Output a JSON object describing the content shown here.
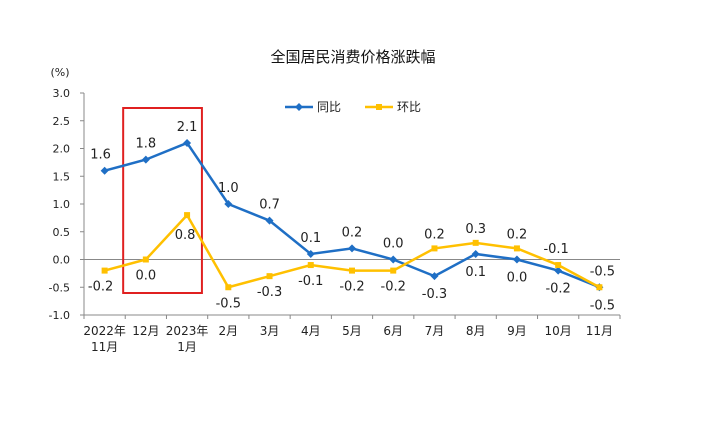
{
  "chart_data": {
    "type": "line",
    "title": "全国居民消费价格涨跌幅",
    "unit_label": "(%)",
    "xlabel": "",
    "ylabel": "",
    "ylim": [
      -1.0,
      3.0
    ],
    "y_ticks": [
      "3.0",
      "2.5",
      "2.0",
      "1.5",
      "1.0",
      "0.5",
      "0.0",
      "-0.5",
      "-1.0"
    ],
    "categories": [
      [
        "2022年",
        "11月"
      ],
      [
        "12月"
      ],
      [
        "2023年",
        "1月"
      ],
      [
        "2月"
      ],
      [
        "3月"
      ],
      [
        "4月"
      ],
      [
        "5月"
      ],
      [
        "6月"
      ],
      [
        "7月"
      ],
      [
        "8月"
      ],
      [
        "9月"
      ],
      [
        "10月"
      ],
      [
        "11月"
      ]
    ],
    "legend_position": "top-center",
    "grid": false,
    "series": [
      {
        "name": "同比",
        "color": "#1f6fc5",
        "marker": "diamond",
        "values": [
          1.6,
          1.8,
          2.1,
          1.0,
          0.7,
          0.1,
          0.2,
          0.0,
          -0.3,
          0.1,
          0.0,
          -0.2,
          -0.5
        ],
        "labels": [
          "1.6",
          "1.8",
          "2.1",
          "1.0",
          "0.7",
          "0.1",
          "0.2",
          "0.0",
          "-0.3",
          "0.1",
          "0.0",
          "-0.2",
          "-0.5"
        ]
      },
      {
        "name": "环比",
        "color": "#ffc000",
        "marker": "square",
        "values": [
          -0.2,
          0.0,
          0.8,
          -0.5,
          -0.3,
          -0.1,
          -0.2,
          -0.2,
          0.2,
          0.3,
          0.2,
          -0.1,
          -0.5
        ],
        "labels": [
          "-0.2",
          "0.0",
          "0.8",
          "-0.5",
          "-0.3",
          "-0.1",
          "-0.2",
          "-0.2",
          "0.2",
          "0.3",
          "0.2",
          "-0.1",
          "-0.5"
        ]
      }
    ],
    "highlight": {
      "from_index": 1,
      "to_index": 2,
      "color": "#e02020"
    }
  }
}
